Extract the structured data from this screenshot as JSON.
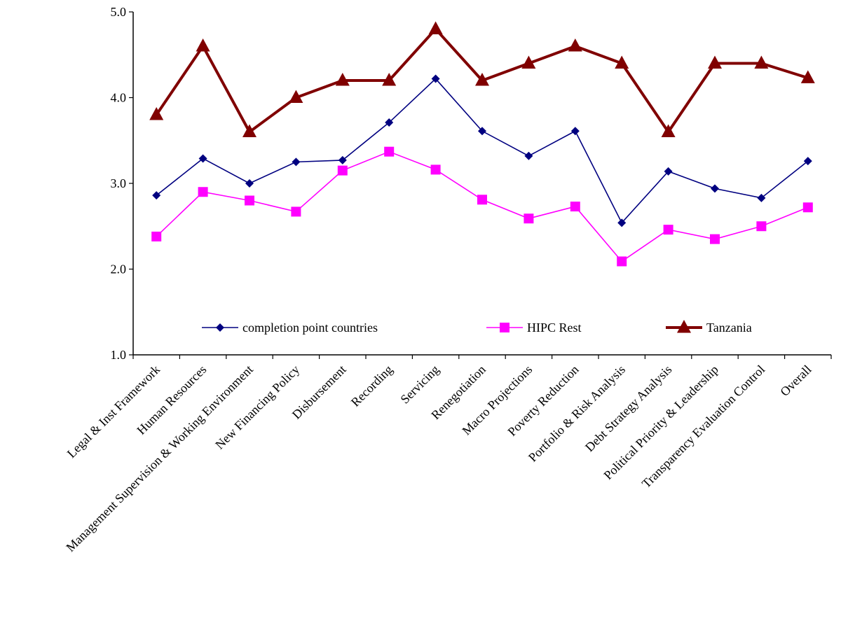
{
  "chart_data": {
    "type": "line",
    "title": "",
    "xlabel": "",
    "ylabel": "",
    "ylim": [
      1.0,
      5.0
    ],
    "yticks": [
      "1.0",
      "2.0",
      "3.0",
      "4.0",
      "5.0"
    ],
    "grid": false,
    "legend_position": "inside-bottom",
    "categories": [
      "Legal & Inst Framework",
      "Human Resources",
      "Management Supervision & Working Environment",
      "New Financing Policy",
      "Disbursement",
      "Recording",
      "Servicing",
      "Renegotiation",
      "Macro Projections",
      "Poverty Reduction",
      "Portfolio & Risk Analysis",
      "Debt Strategy Analysis",
      "Political Priority & Leadership",
      "Transparency Evaluation Control",
      "Overall"
    ],
    "series": [
      {
        "name": "completion point countries",
        "color": "#000080",
        "marker": "diamond",
        "values": [
          2.86,
          3.29,
          3.0,
          3.25,
          3.27,
          3.71,
          4.22,
          3.61,
          3.32,
          3.61,
          2.54,
          3.14,
          2.94,
          2.83,
          3.26
        ]
      },
      {
        "name": "HIPC Rest",
        "color": "#ff00ff",
        "marker": "square",
        "values": [
          2.38,
          2.9,
          2.8,
          2.67,
          3.15,
          3.37,
          3.16,
          2.81,
          2.59,
          2.73,
          2.09,
          2.46,
          2.35,
          2.5,
          2.72
        ]
      },
      {
        "name": "Tanzania",
        "color": "#800000",
        "marker": "triangle",
        "values": [
          3.8,
          4.6,
          3.6,
          4.0,
          4.2,
          4.2,
          4.8,
          4.2,
          4.4,
          4.6,
          4.4,
          3.6,
          4.4,
          4.4,
          4.23
        ]
      }
    ]
  }
}
